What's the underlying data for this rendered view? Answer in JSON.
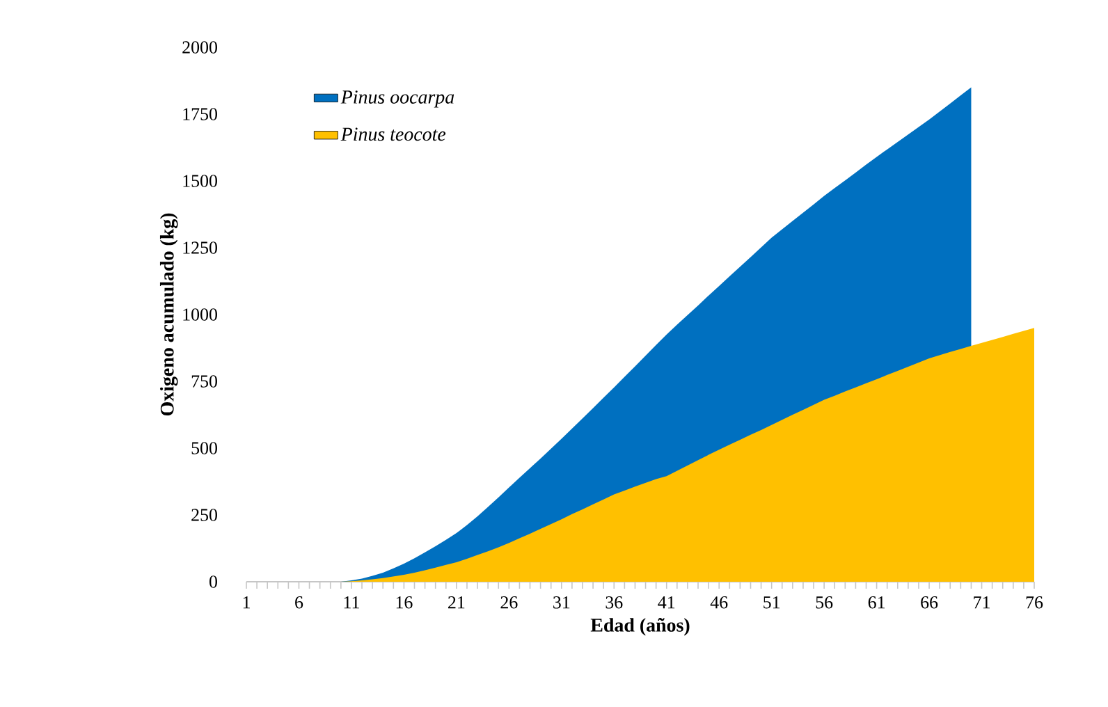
{
  "chart_data": {
    "type": "area",
    "xlabel": "Edad (años)",
    "ylabel": "Oxigeno acumulado (kg)",
    "categories": [
      "1",
      null,
      null,
      null,
      null,
      "6",
      null,
      null,
      null,
      null,
      "11",
      null,
      null,
      null,
      null,
      "16",
      null,
      null,
      null,
      null,
      "21",
      null,
      null,
      null,
      null,
      "26",
      null,
      null,
      null,
      null,
      "31",
      null,
      null,
      null,
      null,
      "36",
      null,
      null,
      null,
      null,
      "41",
      null,
      null,
      null,
      null,
      "46",
      null,
      null,
      null,
      null,
      "51",
      null,
      null,
      null,
      null,
      "56",
      null,
      null,
      null,
      null,
      "61",
      null,
      null,
      null,
      null,
      "66",
      null,
      null,
      null,
      null,
      "71",
      null,
      null,
      null,
      null,
      "76"
    ],
    "series": [
      {
        "name": "Pinus oocarpa",
        "color": "#0070c0",
        "values": [
          0,
          0,
          0,
          0,
          0,
          0,
          0,
          0,
          0,
          0,
          5,
          12,
          22,
          34,
          50,
          68,
          88,
          110,
          133,
          157,
          182,
          212,
          245,
          280,
          316,
          353,
          389,
          425,
          461,
          498,
          535,
          573,
          611,
          650,
          689,
          727,
          767,
          806,
          846,
          886,
          925,
          962,
          998,
          1034,
          1071,
          1107,
          1143,
          1179,
          1215,
          1251,
          1288,
          1319,
          1350,
          1381,
          1412,
          1444,
          1473,
          1502,
          1531,
          1561,
          1590,
          1618,
          1646,
          1674,
          1702,
          1730,
          1760,
          1790,
          1820,
          1850,
          null,
          null,
          null,
          null,
          null,
          null
        ]
      },
      {
        "name": "Pinus teocote",
        "color": "#ffc000",
        "values": [
          0,
          0,
          0,
          0,
          0,
          0,
          0,
          0,
          0,
          0,
          2,
          5,
          9,
          14,
          20,
          26,
          34,
          43,
          53,
          63,
          73,
          86,
          100,
          114,
          129,
          145,
          163,
          180,
          198,
          216,
          234,
          253,
          271,
          290,
          308,
          327,
          341,
          356,
          370,
          384,
          395,
          415,
          435,
          455,
          475,
          494,
          513,
          531,
          550,
          568,
          587,
          606,
          625,
          643,
          662,
          681,
          696,
          712,
          727,
          743,
          758,
          774,
          789,
          805,
          820,
          836,
          848,
          860,
          871,
          883,
          894,
          905,
          916,
          928,
          939,
          950
        ]
      }
    ],
    "ylim": [
      0,
      2000
    ],
    "yticks": [
      0,
      250,
      500,
      750,
      1000,
      1250,
      1500,
      1750,
      2000
    ],
    "legend": "top left"
  }
}
